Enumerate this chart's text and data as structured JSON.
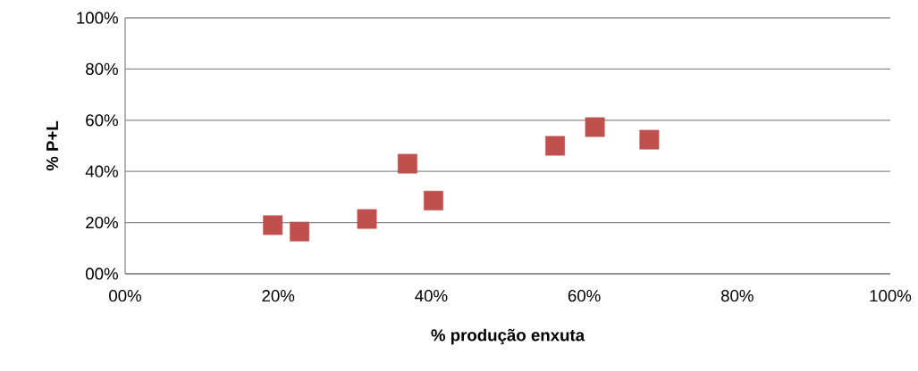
{
  "chart_data": {
    "type": "scatter",
    "xlabel": "% produção enxuta",
    "ylabel": "% P+L",
    "x": [
      19.3,
      22.8,
      31.6,
      36.9,
      40.3,
      56.2,
      61.4,
      68.5
    ],
    "series": [
      {
        "color": "#c0504d",
        "values": [
          19.0,
          16.5,
          21.4,
          43.0,
          28.6,
          50.0,
          57.3,
          52.4
        ]
      }
    ],
    "xlim": [
      0,
      100
    ],
    "ylim": [
      0,
      100
    ],
    "xticks": [
      {
        "value": 0,
        "label": "00%"
      },
      {
        "value": 20,
        "label": "20%"
      },
      {
        "value": 40,
        "label": "40%"
      },
      {
        "value": 60,
        "label": "60%"
      },
      {
        "value": 80,
        "label": "80%"
      },
      {
        "value": 100,
        "label": "100%"
      }
    ],
    "yticks": [
      {
        "value": 0,
        "label": "00%"
      },
      {
        "value": 20,
        "label": "20%"
      },
      {
        "value": 40,
        "label": "40%"
      },
      {
        "value": 60,
        "label": "60%"
      },
      {
        "value": 80,
        "label": "80%"
      },
      {
        "value": 100,
        "label": "100%"
      }
    ],
    "grid": "y",
    "marker": "square"
  }
}
